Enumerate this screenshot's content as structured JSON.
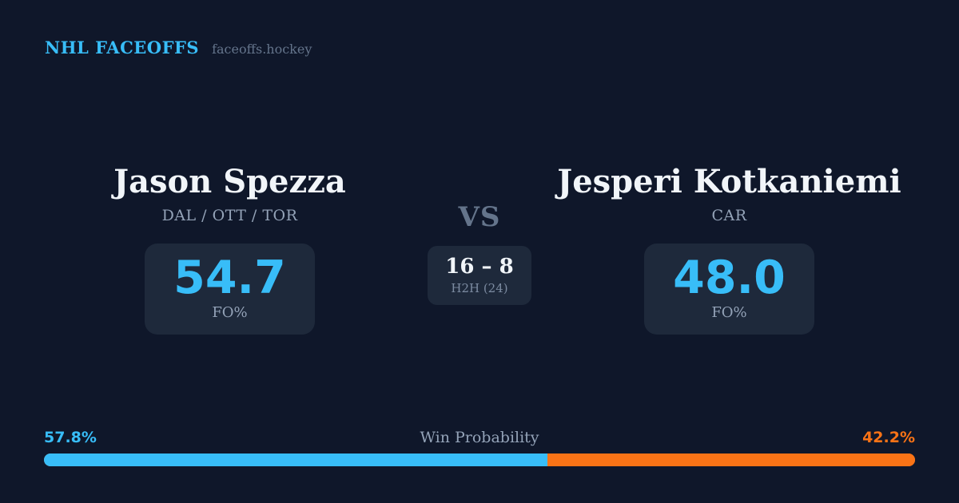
{
  "brand": {
    "title": "NHL FACEOFFS",
    "site": "faceoffs.hockey"
  },
  "players": {
    "left": {
      "name": "Jason Spezza",
      "teams": "DAL / OTT / TOR",
      "stat_value": "54.7",
      "stat_label": "FO%"
    },
    "right": {
      "name": "Jesperi Kotkaniemi",
      "teams": "CAR",
      "stat_value": "48.0",
      "stat_label": "FO%"
    }
  },
  "matchup": {
    "vs_label": "VS",
    "h2h_score": "16 – 8",
    "h2h_label": "H2H (24)"
  },
  "win_probability": {
    "label": "Win Probability",
    "left_pct": "57.8%",
    "right_pct": "42.2%",
    "left_value": 57.8,
    "right_value": 42.2
  },
  "colors": {
    "background": "#0f172a",
    "card": "#1e293b",
    "accent_blue": "#38bdf8",
    "accent_orange": "#f97316",
    "text_bright": "#f1f5f9",
    "text_soft": "#94a3b8",
    "text_muted": "#64748b",
    "text_h2h": "#7c8ba1"
  }
}
